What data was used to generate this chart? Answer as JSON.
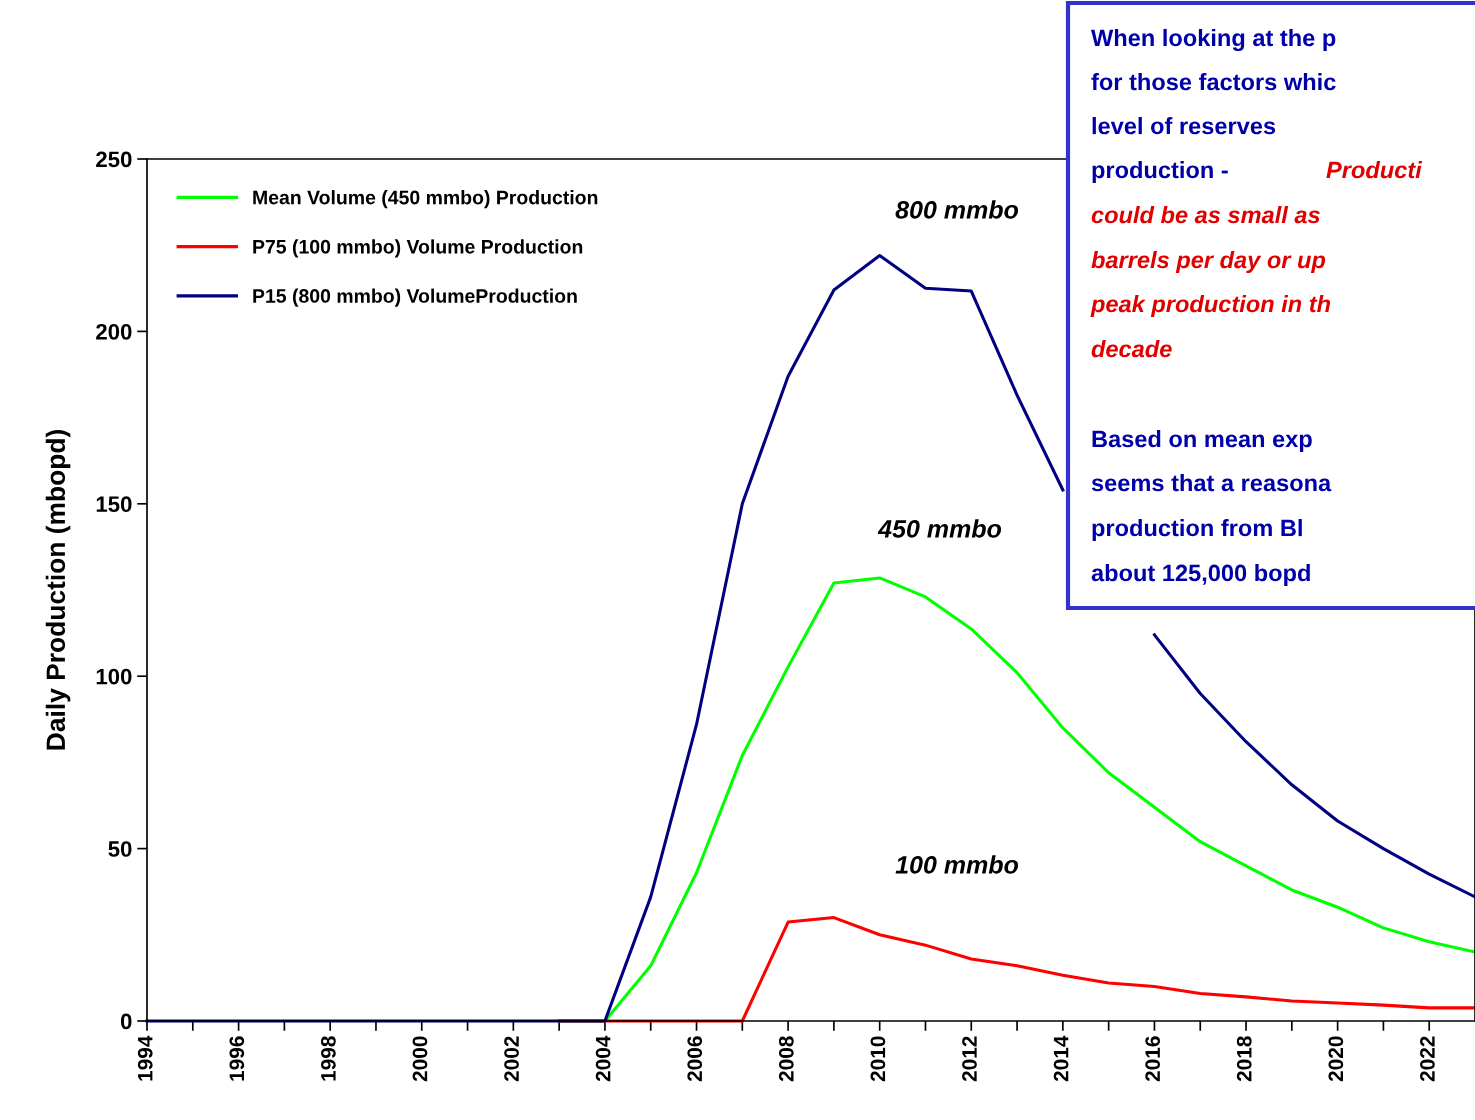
{
  "chart_data": {
    "type": "line",
    "ylabel": "Daily Production (mbopd)",
    "x": [
      1994,
      1995,
      1996,
      1997,
      1998,
      1999,
      2000,
      2001,
      2002,
      2003,
      2004,
      2005,
      2006,
      2007,
      2008,
      2009,
      2010,
      2011,
      2012,
      2013,
      2014,
      2015,
      2016,
      2017,
      2018,
      2019,
      2020,
      2021,
      2022,
      2023
    ],
    "series": [
      {
        "name": "Mean Volume (450 mmbo) Production",
        "color": "#00ff00",
        "values": [
          null,
          null,
          null,
          null,
          null,
          null,
          null,
          null,
          null,
          0,
          0,
          16,
          43,
          77,
          102.7,
          127,
          128.5,
          123,
          113.7,
          101,
          85,
          72,
          62,
          52,
          45,
          38,
          33,
          27,
          23,
          20
        ]
      },
      {
        "name": "P75 (100 mmbo) Volume Production",
        "color": "#ff0000",
        "values": [
          null,
          null,
          null,
          null,
          null,
          null,
          null,
          null,
          null,
          0,
          0,
          0,
          0,
          0,
          28.7,
          30,
          25,
          22,
          18,
          16,
          13.3,
          11,
          10,
          8,
          7,
          5.8,
          5.2,
          4.6,
          3.8,
          3.8
        ]
      },
      {
        "name": "P15 (800 mmbo) VolumeProduction",
        "color": "#000080",
        "values": [
          0,
          0,
          0,
          0,
          0,
          0,
          0,
          0,
          0,
          0,
          0,
          36,
          86,
          150,
          187,
          212,
          222,
          212.5,
          211.7,
          181.5,
          154,
          null,
          112,
          95,
          81,
          68.5,
          58,
          50,
          42.6,
          36
        ]
      }
    ],
    "xlim": [
      1994,
      2023
    ],
    "ylim": [
      0,
      250
    ],
    "yticks": [
      0,
      50,
      100,
      150,
      200,
      250
    ],
    "xticks": [
      1994,
      {
        "value": 1995,
        "label": null
      },
      1996,
      {
        "value": 1997,
        "label": null
      },
      1998,
      {
        "value": 1999,
        "label": null
      },
      2000,
      {
        "value": 2001,
        "label": null
      },
      2002,
      {
        "value": 2003,
        "label": null
      },
      2004,
      {
        "value": 2005,
        "label": null
      },
      2006,
      {
        "value": 2007,
        "label": null
      },
      2008,
      {
        "value": 2009,
        "label": null
      },
      2010,
      {
        "value": 2011,
        "label": null
      },
      2012,
      {
        "value": 2013,
        "label": null
      },
      2014,
      {
        "value": 2015,
        "label": null
      },
      2016,
      {
        "value": 2017,
        "label": null
      },
      2018,
      {
        "value": 2019,
        "label": null
      },
      2020,
      {
        "value": 2021,
        "label": null
      },
      2022
    ],
    "grid": false,
    "legend": "top left",
    "marker": "none",
    "line_style": "solid",
    "annotations": [
      "800 mmbo",
      "450 mmbo",
      "100 mmbo",
      "When looking at the p",
      "for those factors whic",
      "level of reserves",
      "production -",
      "Producti",
      "could be as small as",
      "barrels per day or up",
      "peak production in th",
      "decade",
      "Based on mean exp",
      "seems that a reasona",
      "production from Bl",
      "about 125,000 bopd"
    ]
  }
}
